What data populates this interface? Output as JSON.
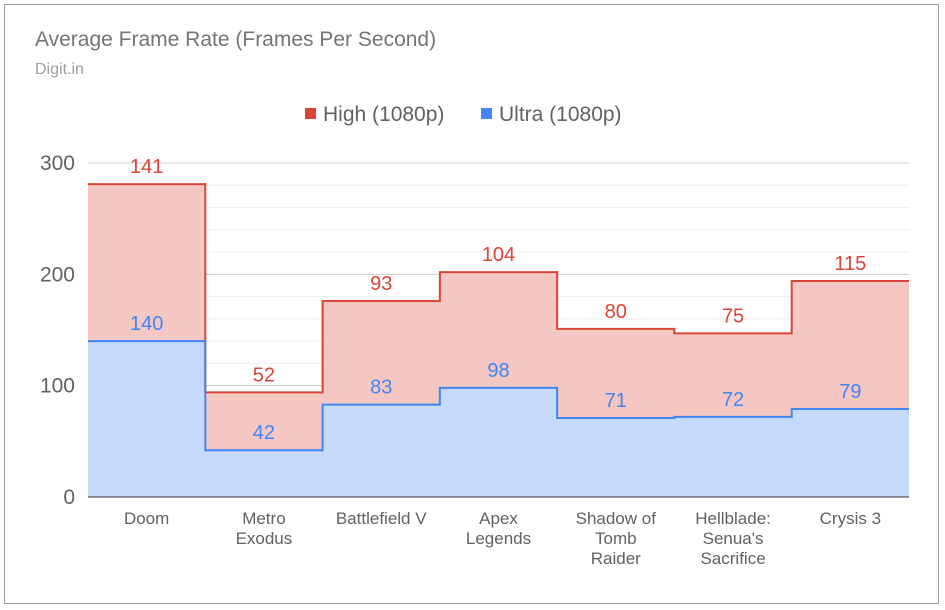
{
  "chart_data": {
    "type": "area",
    "title": "Average Frame Rate (Frames Per Second)",
    "subtitle": "Digit.in",
    "stacked": true,
    "categories": [
      [
        "Doom"
      ],
      [
        "Metro",
        "Exodus"
      ],
      [
        "Battlefield V"
      ],
      [
        "Apex",
        "Legends"
      ],
      [
        "Shadow of",
        "Tomb",
        "Raider"
      ],
      [
        "Hellblade:",
        "Senua's",
        "Sacrifice"
      ],
      [
        "Crysis 3"
      ]
    ],
    "series": [
      {
        "name": "High (1080p)",
        "values": [
          141,
          52,
          93,
          104,
          80,
          75,
          115
        ],
        "color": "#db4437",
        "fill": "#f4c7c3"
      },
      {
        "name": "Ultra (1080p)",
        "values": [
          140,
          42,
          83,
          98,
          71,
          72,
          79
        ],
        "color": "#4285f4",
        "fill": "#c6dafc"
      }
    ],
    "ylim": [
      0,
      300
    ],
    "yticks": [
      "0",
      "100",
      "200",
      "300"
    ],
    "grid": true,
    "legend_position": "top"
  }
}
